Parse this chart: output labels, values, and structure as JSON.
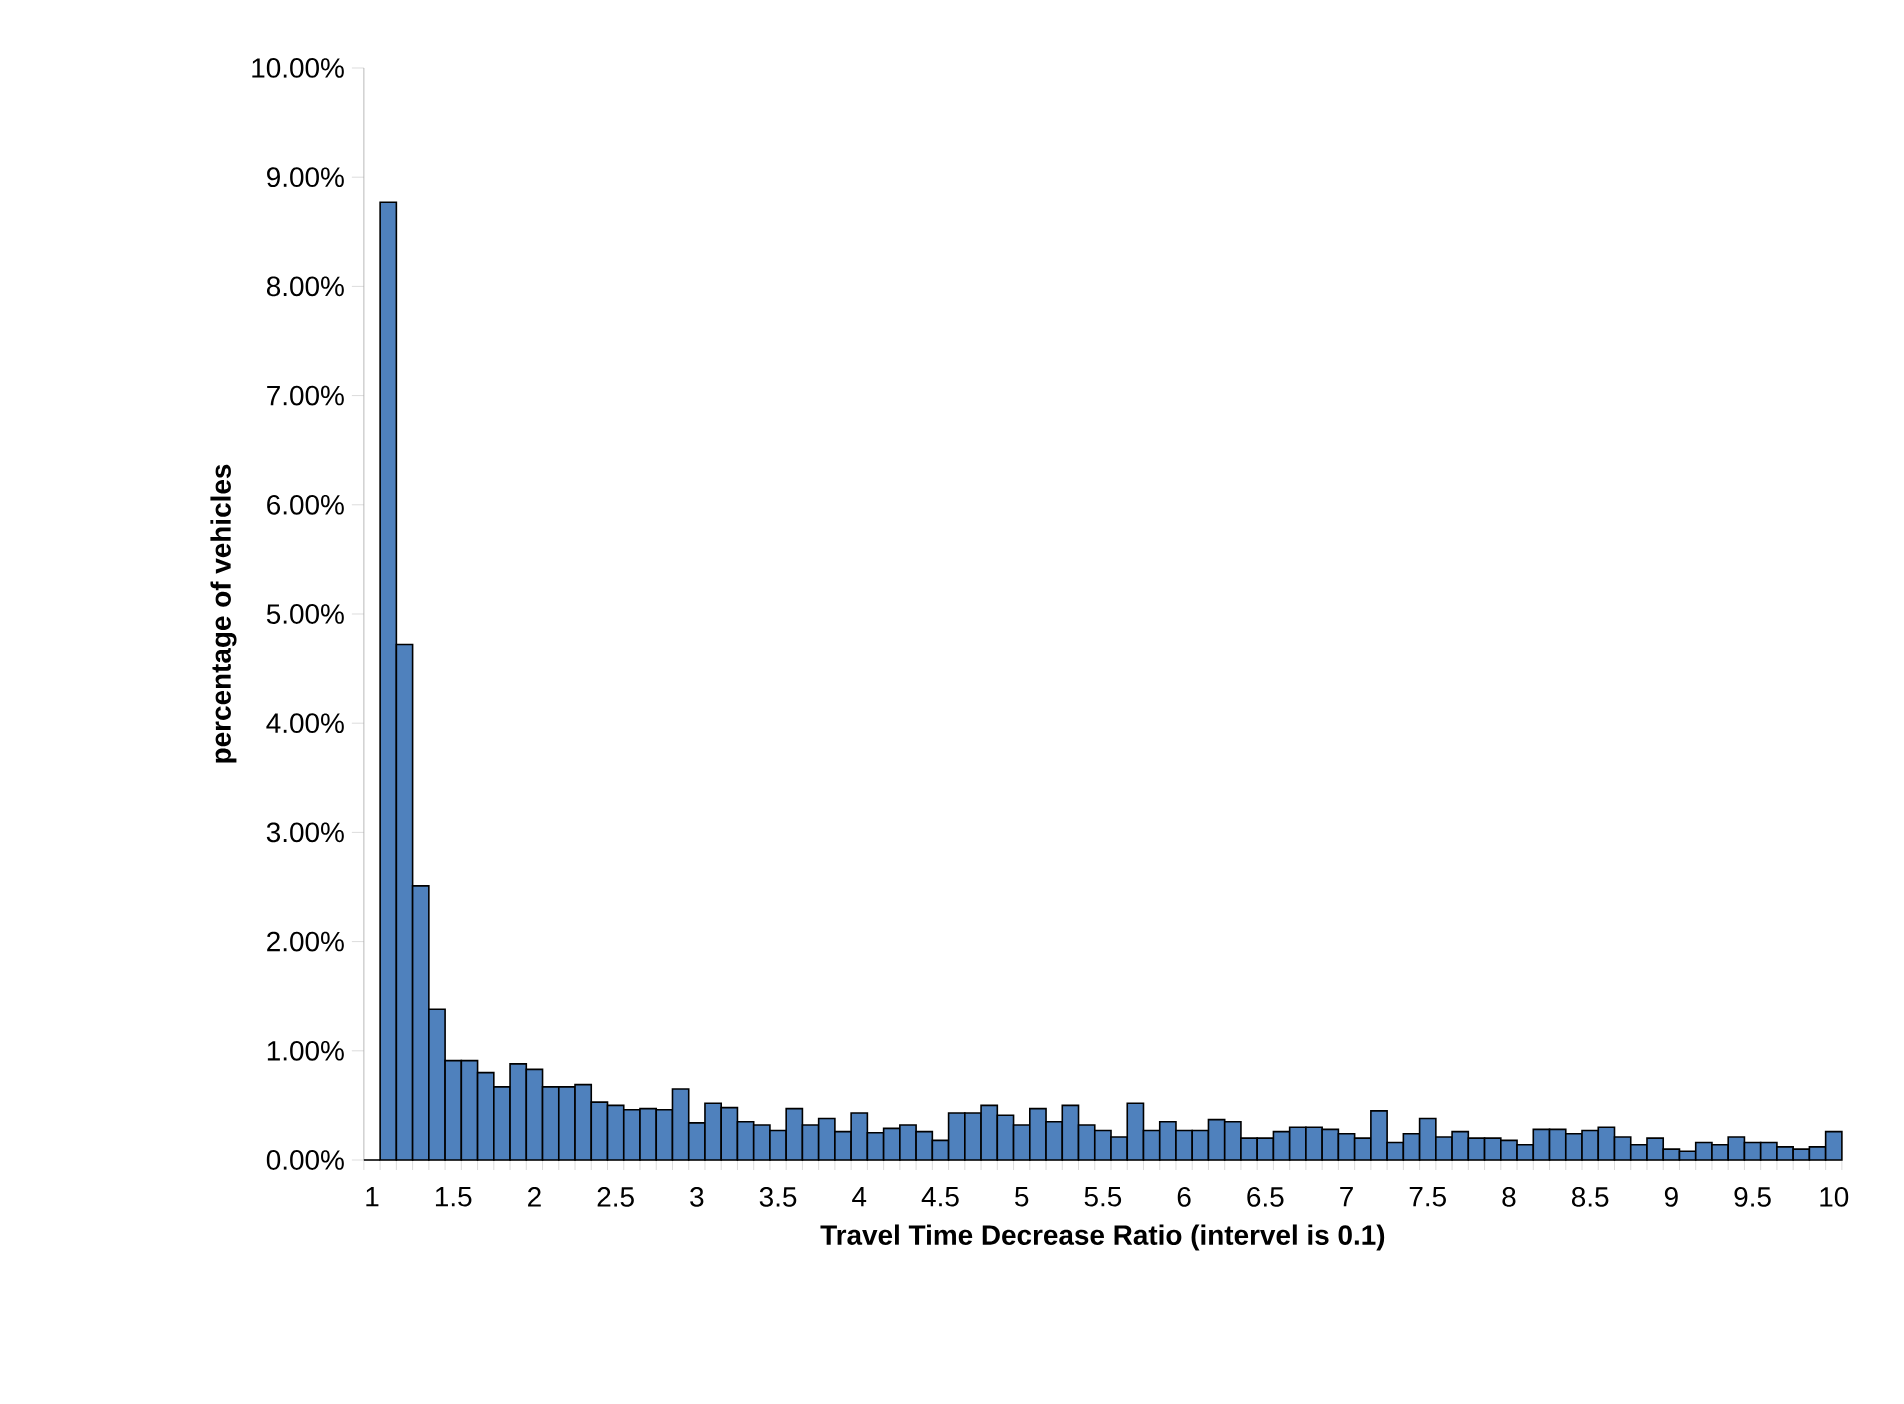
{
  "chart_data": {
    "type": "bar",
    "xlabel": "Travel Time Decrease Ratio (intervel is 0.1)",
    "ylabel": "percentage of vehicles",
    "categories": [
      "1",
      null,
      null,
      null,
      null,
      "1.5",
      null,
      null,
      null,
      null,
      "2",
      null,
      null,
      null,
      null,
      "2.5",
      null,
      null,
      null,
      null,
      "3",
      null,
      null,
      null,
      null,
      "3.5",
      null,
      null,
      null,
      null,
      "4",
      null,
      null,
      null,
      null,
      "4.5",
      null,
      null,
      null,
      null,
      "5",
      null,
      null,
      null,
      null,
      "5.5",
      null,
      null,
      null,
      null,
      "6",
      null,
      null,
      null,
      null,
      "6.5",
      null,
      null,
      null,
      null,
      "7",
      null,
      null,
      null,
      null,
      "7.5",
      null,
      null,
      null,
      null,
      "8",
      null,
      null,
      null,
      null,
      "8.5",
      null,
      null,
      null,
      null,
      "9",
      null,
      null,
      null,
      null,
      "9.5",
      null,
      null,
      null,
      null,
      "10"
    ],
    "values": [
      0,
      8.77,
      4.72,
      2.51,
      1.38,
      0.91,
      0.91,
      0.8,
      0.67,
      0.88,
      0.83,
      0.67,
      0.67,
      0.69,
      0.53,
      0.5,
      0.46,
      0.47,
      0.46,
      0.65,
      0.34,
      0.52,
      0.48,
      0.35,
      0.32,
      0.27,
      0.47,
      0.32,
      0.38,
      0.26,
      0.43,
      0.25,
      0.29,
      0.32,
      0.26,
      0.18,
      0.43,
      0.43,
      0.5,
      0.41,
      0.32,
      0.47,
      0.35,
      0.5,
      0.32,
      0.27,
      0.21,
      0.52,
      0.27,
      0.35,
      0.27,
      0.27,
      0.37,
      0.35,
      0.2,
      0.2,
      0.26,
      0.3,
      0.3,
      0.28,
      0.24,
      0.2,
      0.45,
      0.16,
      0.24,
      0.38,
      0.21,
      0.26,
      0.2,
      0.2,
      0.18,
      0.14,
      0.28,
      0.28,
      0.24,
      0.27,
      0.3,
      0.21,
      0.14,
      0.2,
      0.1,
      0.08,
      0.16,
      0.14,
      0.21,
      0.16,
      0.16,
      0.12,
      0.1,
      0.12,
      0.26
    ],
    "color": "#4f81bd",
    "ylim": [
      0,
      10
    ],
    "yticks": [
      {
        "value": 0,
        "label": "0.00%"
      },
      {
        "value": 1,
        "label": "1.00%"
      },
      {
        "value": 2,
        "label": "2.00%"
      },
      {
        "value": 3,
        "label": "3.00%"
      },
      {
        "value": 4,
        "label": "4.00%"
      },
      {
        "value": 5,
        "label": "5.00%"
      },
      {
        "value": 6,
        "label": "6.00%"
      },
      {
        "value": 7,
        "label": "7.00%"
      },
      {
        "value": 8,
        "label": "8.00%"
      },
      {
        "value": 9,
        "label": "9.00%"
      },
      {
        "value": 10,
        "label": "10.00%"
      }
    ]
  }
}
